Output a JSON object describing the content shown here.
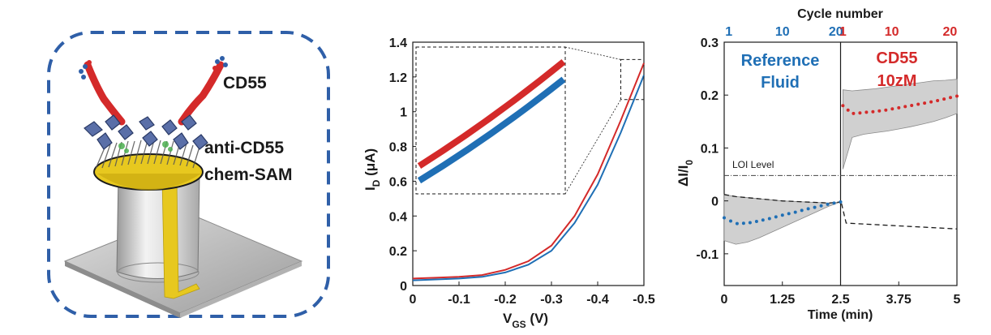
{
  "colors": {
    "red": "#d42a2a",
    "blue": "#1f6fb5",
    "dash_frame": "#2f5fa8",
    "gold": "#e7c81f",
    "dark": "#1a1a1a",
    "band": "#d0d0d0"
  },
  "panel_a": {
    "labels": {
      "cd55": "CD55",
      "anti": "anti-CD55",
      "sam": "chem-SAM"
    },
    "icons": [
      "antibody-icon",
      "protein-icon",
      "electrode-icon"
    ]
  },
  "chart_data": [
    {
      "type": "line",
      "title": "",
      "xlabel": {
        "main": "V",
        "sub": "GS",
        "unit": " (V)"
      },
      "ylabel": {
        "main": "I",
        "sub": "D",
        "unit": " (μA)"
      },
      "xlim": [
        0,
        -0.5
      ],
      "ylim": [
        0,
        1.4
      ],
      "x_ticks": [
        "0",
        "-0.1",
        "-0.2",
        "-0.3",
        "-0.4",
        "-0.5"
      ],
      "x_tick_values": [
        0,
        -0.1,
        -0.2,
        -0.3,
        -0.4,
        -0.5
      ],
      "y_ticks": [
        "0",
        "0.2",
        "0.4",
        "0.6",
        "0.8",
        "1",
        "1.2",
        "1.4"
      ],
      "y_tick_values": [
        0,
        0.2,
        0.4,
        0.6,
        0.8,
        1.0,
        1.2,
        1.4
      ],
      "legend": "none",
      "x": [
        0,
        -0.05,
        -0.1,
        -0.15,
        -0.2,
        -0.25,
        -0.3,
        -0.35,
        -0.4,
        -0.45,
        -0.5
      ],
      "series": [
        {
          "color": "red",
          "values": [
            0.04,
            0.045,
            0.05,
            0.06,
            0.09,
            0.14,
            0.23,
            0.4,
            0.64,
            0.95,
            1.28
          ]
        },
        {
          "color": "blue",
          "values": [
            0.03,
            0.035,
            0.04,
            0.05,
            0.075,
            0.12,
            0.2,
            0.36,
            0.58,
            0.88,
            1.21
          ]
        }
      ],
      "inset": {
        "zoom_x": [
          -0.45,
          -0.5
        ],
        "zoom_y": [
          1.07,
          1.3
        ],
        "red": [
          0.64,
          1.35
        ],
        "blue": [
          0.54,
          1.23
        ]
      }
    },
    {
      "type": "line",
      "title": "",
      "top_axis_label": "Cycle number",
      "xlabel": "Time (min)",
      "ylabel": {
        "main": "ΔI/I",
        "sub": "0"
      },
      "xlim": [
        0,
        5
      ],
      "ylim": [
        -0.16,
        0.3
      ],
      "x_ticks": [
        "0",
        "1.25",
        "2.5",
        "3.75",
        "5"
      ],
      "x_tick_values": [
        0,
        1.25,
        2.5,
        3.75,
        5
      ],
      "y_ticks": [
        "-0.1",
        "0",
        "0.1",
        "0.2",
        "0.3"
      ],
      "y_tick_values": [
        -0.1,
        0,
        0.1,
        0.2,
        0.3
      ],
      "top_ticks_left": {
        "labels": [
          "1",
          "10",
          "20"
        ],
        "x": [
          0.1,
          1.25,
          2.4
        ],
        "color": "blue"
      },
      "top_ticks_right": {
        "labels": [
          "1",
          "10",
          "20"
        ],
        "x": [
          2.55,
          3.6,
          4.85
        ],
        "color": "red"
      },
      "divider_x": 2.5,
      "loi": {
        "label": "LOI Level",
        "y": 0.048
      },
      "annotations": {
        "ref_line1": "Reference",
        "ref_line2": "Fluid",
        "cd_line1": "CD55",
        "cd_line2": "10zM"
      },
      "reference_fluid": {
        "x": [
          0,
          0.25,
          0.5,
          0.75,
          1.0,
          1.25,
          1.5,
          1.75,
          2.0,
          2.25,
          2.5
        ],
        "mean": [
          -0.032,
          -0.043,
          -0.042,
          -0.038,
          -0.033,
          -0.027,
          -0.022,
          -0.016,
          -0.011,
          -0.006,
          -0.002
        ],
        "upper": [
          0.012,
          0.008,
          0.006,
          0.004,
          0.002,
          0.0,
          -0.001,
          -0.002,
          -0.003,
          -0.004,
          -0.002
        ],
        "lower": [
          -0.075,
          -0.082,
          -0.078,
          -0.07,
          -0.06,
          -0.05,
          -0.04,
          -0.03,
          -0.02,
          -0.01,
          -0.002
        ]
      },
      "cd55": {
        "x": [
          2.55,
          2.75,
          3.0,
          3.25,
          3.5,
          3.75,
          4.0,
          4.25,
          4.5,
          4.75,
          5.0
        ],
        "mean": [
          0.18,
          0.165,
          0.167,
          0.169,
          0.172,
          0.176,
          0.18,
          0.184,
          0.188,
          0.193,
          0.198
        ],
        "upper": [
          0.21,
          0.208,
          0.21,
          0.212,
          0.215,
          0.218,
          0.221,
          0.224,
          0.227,
          0.228,
          0.23
        ],
        "lower": [
          0.06,
          0.12,
          0.126,
          0.129,
          0.132,
          0.136,
          0.14,
          0.145,
          0.15,
          0.157,
          0.165
        ]
      }
    }
  ]
}
